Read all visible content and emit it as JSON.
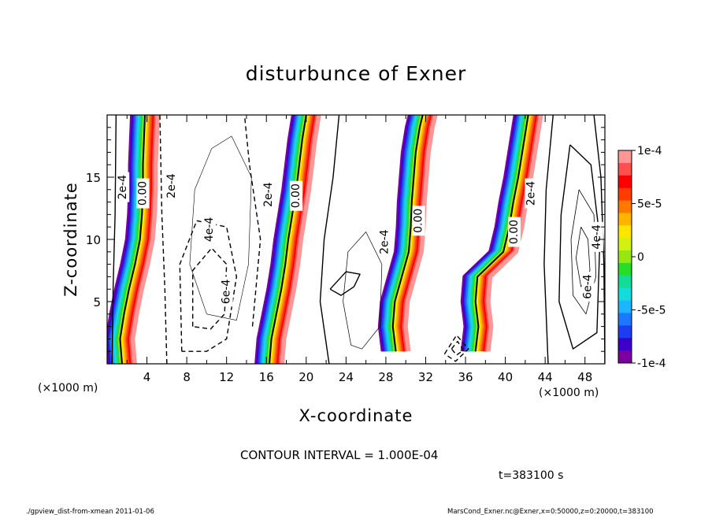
{
  "chart_data": {
    "type": "heatmap",
    "title": "disturbunce of Exner",
    "xlabel": "X-coordinate",
    "ylabel": "Z-coordinate",
    "x_unit_label": "(×1000 m)",
    "y_unit_label": "(×1000 m)",
    "xlim": [
      0,
      50
    ],
    "ylim": [
      0,
      20
    ],
    "x_ticks": [
      "4",
      "8",
      "12",
      "16",
      "20",
      "24",
      "28",
      "32",
      "36",
      "40",
      "44",
      "48"
    ],
    "y_ticks": [
      "5",
      "10",
      "15"
    ],
    "colorbar": {
      "range": [
        -0.0001,
        0.0001
      ],
      "tick_labels": [
        "1e-4",
        "5e-5",
        "0",
        "-5e-5",
        "-1e-4"
      ],
      "colors": [
        "#7a00a0",
        "#3c00c8",
        "#1e3cf0",
        "#1e78ff",
        "#1eb4ff",
        "#14dcdc",
        "#14dc96",
        "#28dc28",
        "#96e614",
        "#d2f014",
        "#ffe600",
        "#ffb400",
        "#ff7800",
        "#ff3c00",
        "#ff0000",
        "#ff5050",
        "#ff9696"
      ]
    },
    "contour_labels": [
      "2e-4",
      "0.00",
      "2e-4",
      "4e-4",
      "6e-4",
      "2e-4",
      "0.00",
      "2e-4",
      "0.00",
      "0.00",
      "2e-4",
      "4e-4",
      "6e-4"
    ],
    "contour_interval_text": "CONTOUR INTERVAL = 1.000E-04",
    "time_text": "t=383100 s",
    "footer_left": "./gpview_dist-from-xmean  2011-01-06",
    "footer_right": "MarsCond_Exner.nc@Exner,x=0:50000,z=0:20000,t=383100",
    "zero_line_bands": [
      {
        "z": [
          0,
          2,
          4,
          6,
          8,
          10,
          12,
          14,
          16,
          18,
          20
        ],
        "x": [
          1.5,
          1.3,
          1.7,
          2.2,
          2.8,
          3.3,
          3.5,
          3.6,
          3.6,
          3.7,
          3.8
        ]
      },
      {
        "z": [
          0,
          2,
          4,
          6,
          8,
          10,
          12,
          14,
          16,
          18,
          20
        ],
        "x": [
          16.3,
          16.5,
          17.0,
          17.5,
          17.9,
          18.2,
          18.6,
          19.0,
          19.3,
          19.6,
          20.0
        ]
      },
      {
        "z": [
          1,
          3,
          5,
          7,
          9,
          11,
          13,
          15,
          17,
          19,
          20
        ],
        "x": [
          29.0,
          28.7,
          28.9,
          29.6,
          30.3,
          30.5,
          30.6,
          30.8,
          31.0,
          31.4,
          31.7
        ]
      },
      {
        "z": [
          1,
          3,
          5,
          7,
          9,
          11,
          13,
          15,
          17,
          19,
          20
        ],
        "x": [
          37.0,
          37.3,
          37.0,
          37.2,
          39.8,
          40.4,
          40.8,
          41.3,
          41.7,
          42.1,
          42.3
        ]
      }
    ]
  }
}
